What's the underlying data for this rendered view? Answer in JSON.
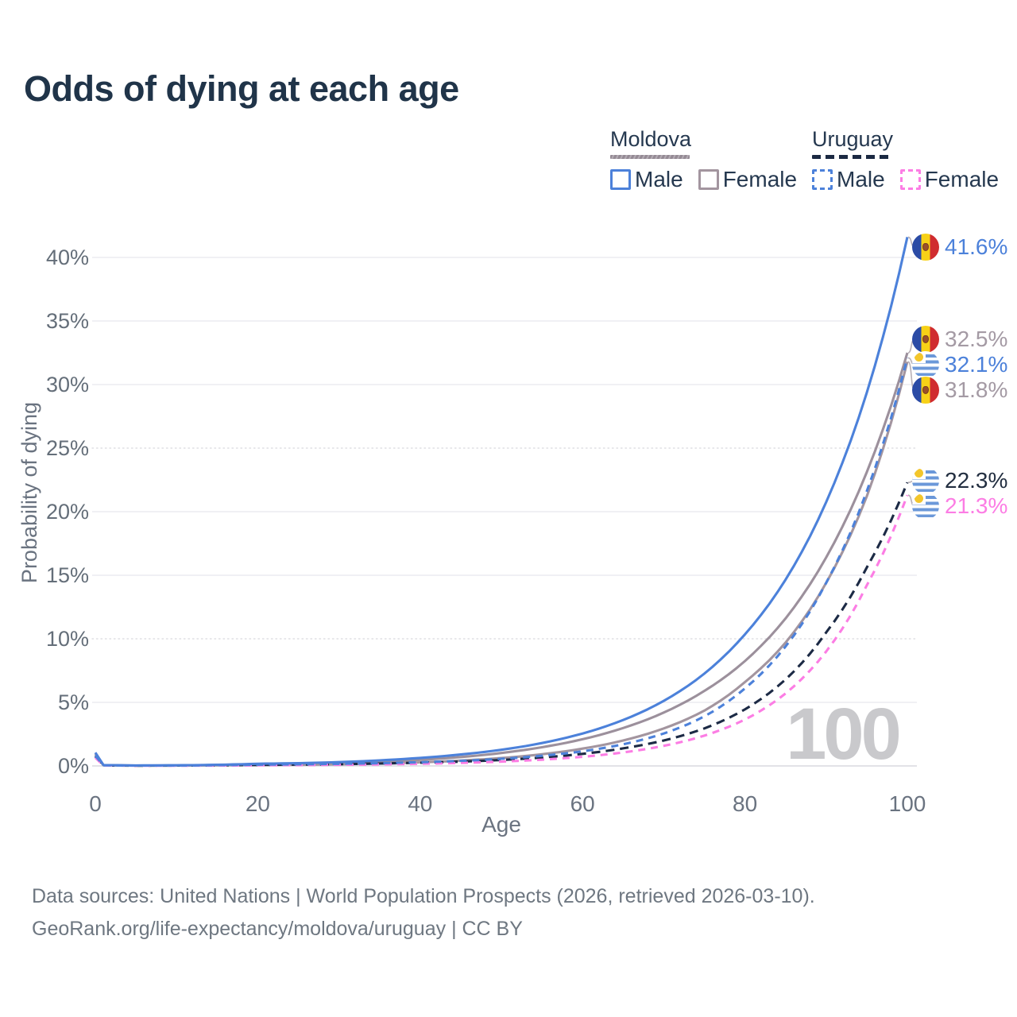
{
  "header": {
    "title": "Odds of dying at each age"
  },
  "legend": {
    "moldova": {
      "name": "Moldova",
      "male": "Male",
      "female": "Female"
    },
    "uruguay": {
      "name": "Uruguay",
      "male": "Male",
      "female": "Female"
    }
  },
  "colors": {
    "male_blue": "#4c81da",
    "moldova_total_gray": "#9c909c",
    "moldova_female_mauve": "#a3959f",
    "uruguay_total_navy": "#1c2a45",
    "uruguay_female_pink": "#fc7de4",
    "title_navy": "#203449",
    "axis_text": "#6a7380",
    "watermark_gray": "#c9c9cc"
  },
  "chart_data": {
    "type": "line",
    "title": "Odds of dying at each age",
    "xlabel": "Age",
    "ylabel": "Probability of dying",
    "x_ticks": [
      0,
      20,
      40,
      60,
      80,
      100
    ],
    "y_ticks": [
      0,
      5,
      10,
      15,
      20,
      25,
      30,
      35,
      40
    ],
    "y_tick_suffix": "%",
    "xlim": [
      0,
      100
    ],
    "ylim": [
      0,
      43
    ],
    "grid": true,
    "legend_position": "top-right",
    "watermark": "100",
    "ages": [
      0,
      1,
      5,
      10,
      15,
      20,
      25,
      30,
      35,
      40,
      45,
      50,
      55,
      60,
      65,
      70,
      75,
      80,
      85,
      90,
      95,
      100
    ],
    "series": [
      {
        "id": "moldova_male",
        "country": "Moldova",
        "sex": "Male",
        "style": "solid",
        "color": "#4c81da",
        "flag": "moldova",
        "end_label": "41.6%",
        "label_color": "#4c81da",
        "values": [
          1.05,
          0.07,
          0.04,
          0.05,
          0.09,
          0.17,
          0.22,
          0.3,
          0.44,
          0.63,
          0.9,
          1.27,
          1.8,
          2.55,
          3.61,
          5.12,
          7.26,
          10.35,
          14.65,
          20.75,
          29.35,
          41.6
        ]
      },
      {
        "id": "moldova_total",
        "country": "Moldova",
        "sex": "Total",
        "style": "solid",
        "color": "#9c909c",
        "flag": "moldova",
        "end_label": "32.5%",
        "label_color": "#a49aa4",
        "values": [
          0.95,
          0.06,
          0.03,
          0.04,
          0.07,
          0.12,
          0.16,
          0.22,
          0.33,
          0.48,
          0.7,
          1.02,
          1.47,
          2.1,
          2.98,
          4.2,
          5.9,
          8.25,
          11.6,
          16.4,
          23.1,
          32.5
        ]
      },
      {
        "id": "uruguay_male",
        "country": "Uruguay",
        "sex": "Male",
        "style": "dashed",
        "color": "#4c81da",
        "flag": "uruguay",
        "end_label": "32.1%",
        "label_color": "#4c81da",
        "values": [
          0.8,
          0.05,
          0.03,
          0.03,
          0.06,
          0.1,
          0.13,
          0.17,
          0.22,
          0.29,
          0.4,
          0.56,
          0.8,
          1.15,
          1.7,
          2.55,
          3.9,
          6.1,
          9.4,
          14.4,
          21.6,
          32.1
        ]
      },
      {
        "id": "moldova_female",
        "country": "Moldova",
        "sex": "Female",
        "style": "solid",
        "color": "#a3959f",
        "flag": "moldova",
        "end_label": "31.8%",
        "label_color": "#a49aa4",
        "values": [
          0.85,
          0.05,
          0.03,
          0.03,
          0.05,
          0.07,
          0.09,
          0.13,
          0.19,
          0.28,
          0.42,
          0.62,
          0.92,
          1.36,
          2.0,
          2.95,
          4.35,
          6.6,
          9.7,
          14.4,
          21.2,
          31.8
        ]
      },
      {
        "id": "uruguay_total",
        "country": "Uruguay",
        "sex": "Total",
        "style": "dashed",
        "color": "#1c2a45",
        "flag": "uruguay",
        "end_label": "22.3%",
        "label_color": "#222e40",
        "values": [
          0.75,
          0.05,
          0.02,
          0.03,
          0.05,
          0.08,
          0.11,
          0.14,
          0.19,
          0.25,
          0.34,
          0.47,
          0.66,
          0.95,
          1.38,
          2.0,
          2.95,
          4.45,
          6.8,
          10.5,
          15.6,
          22.3
        ]
      },
      {
        "id": "uruguay_female",
        "country": "Uruguay",
        "sex": "Female",
        "style": "dashed",
        "color": "#fc7de4",
        "flag": "uruguay",
        "end_label": "21.3%",
        "label_color": "#fc7de4",
        "values": [
          0.65,
          0.04,
          0.02,
          0.02,
          0.03,
          0.05,
          0.07,
          0.09,
          0.12,
          0.17,
          0.24,
          0.34,
          0.49,
          0.72,
          1.06,
          1.58,
          2.38,
          3.65,
          5.7,
          9.0,
          14.2,
          21.3
        ]
      }
    ]
  },
  "footer": {
    "line1": "Data sources: United Nations | World Population Prospects (2026, retrieved 2026-03-10).",
    "line2": "GeoRank.org/life-expectancy/moldova/uruguay | CC BY"
  }
}
